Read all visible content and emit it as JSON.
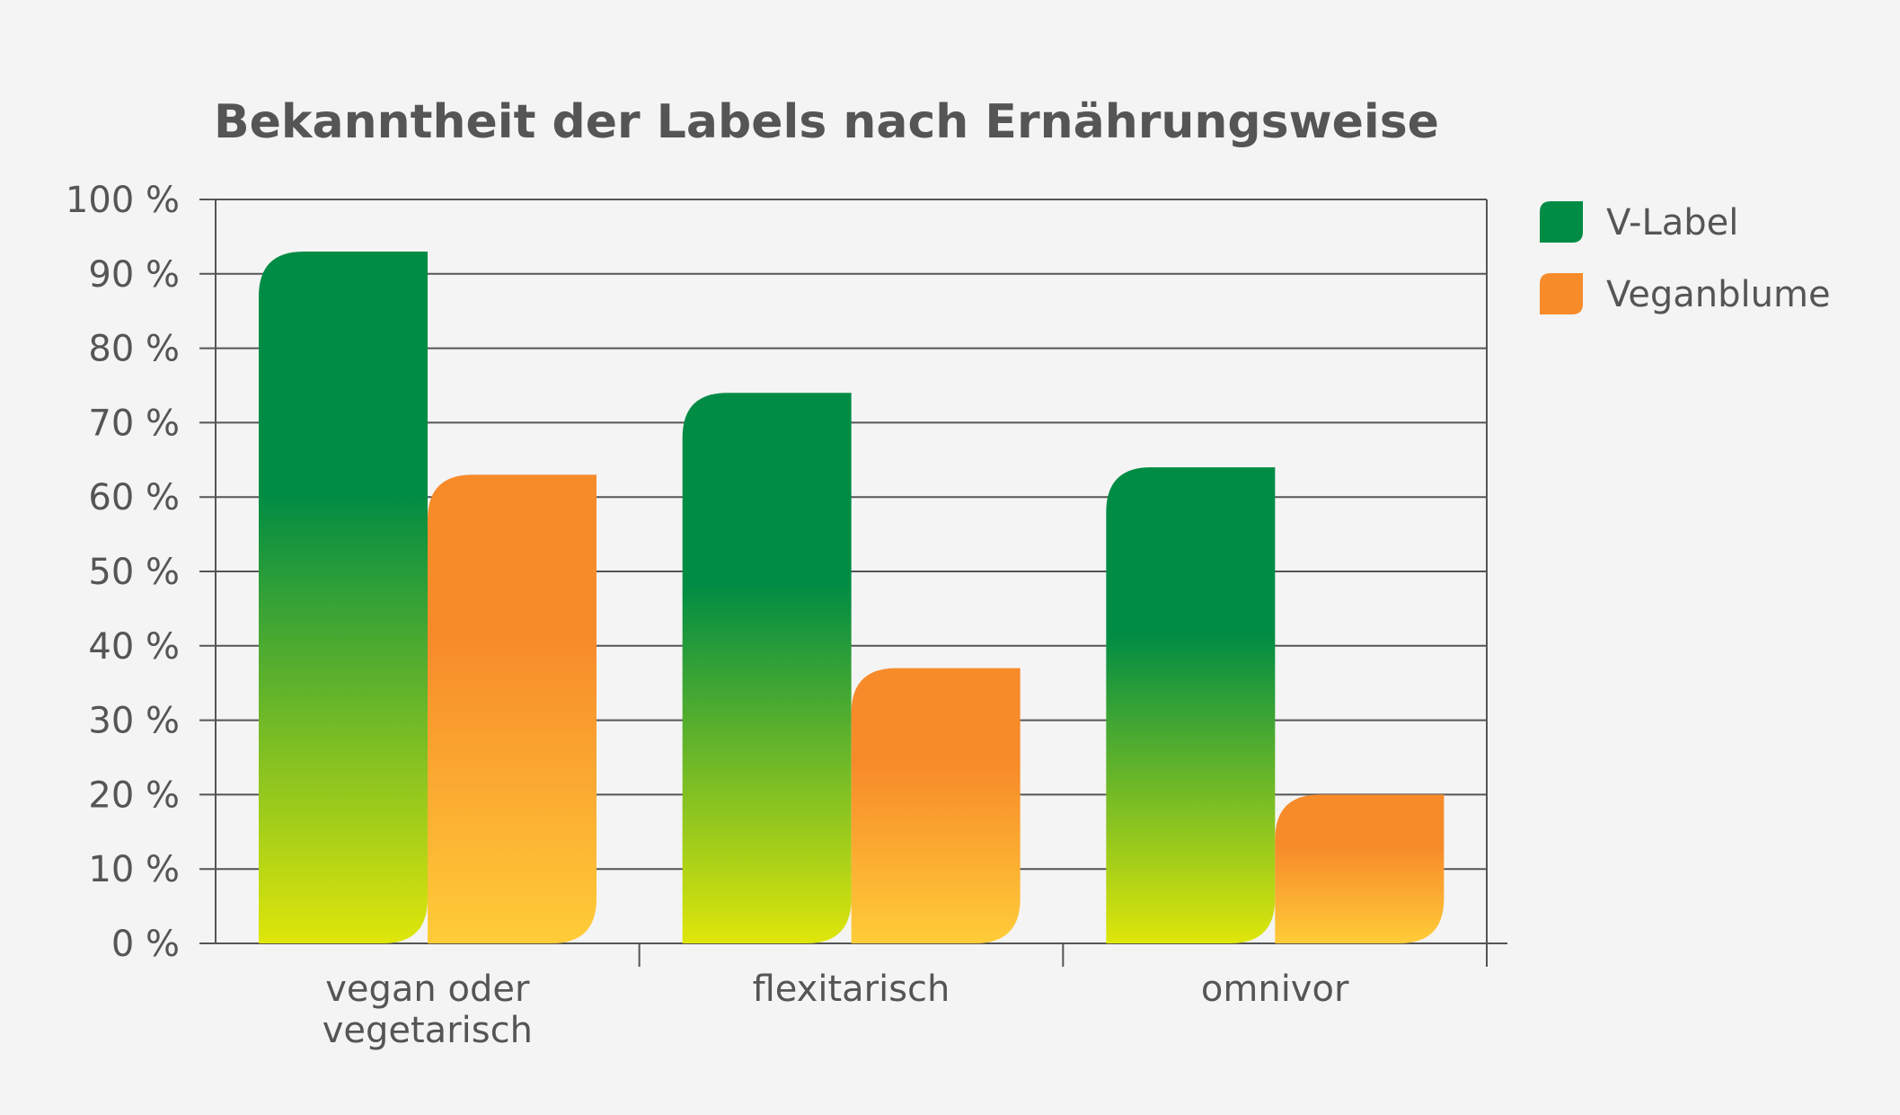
{
  "chart_data": {
    "type": "bar",
    "title": "Bekanntheit der Labels nach Ernährungsweise",
    "categories": [
      [
        "vegan oder",
        "vegetarisch"
      ],
      [
        "flexitarisch"
      ],
      [
        "omnivor"
      ]
    ],
    "series": [
      {
        "name": "V-Label",
        "values": [
          93,
          74,
          64
        ],
        "color": "#008c44",
        "color_bottom": "#dfe60a"
      },
      {
        "name": "Veganblume",
        "values": [
          63,
          37,
          20
        ],
        "color": "#f78b2a",
        "color_bottom": "#ffcc38"
      }
    ],
    "ylim": [
      0,
      100
    ],
    "yticks": [
      0,
      10,
      20,
      30,
      40,
      50,
      60,
      70,
      80,
      90,
      100
    ],
    "ytick_labels": [
      "0 %",
      "10 %",
      "20 %",
      "30 %",
      "40 %",
      "50 %",
      "60 %",
      "70 %",
      "80 %",
      "90 %",
      "100 %"
    ],
    "grid": true,
    "legend": "right",
    "axis_color": "#555555",
    "text_color": "#555555",
    "background": "#f4f4f4"
  }
}
